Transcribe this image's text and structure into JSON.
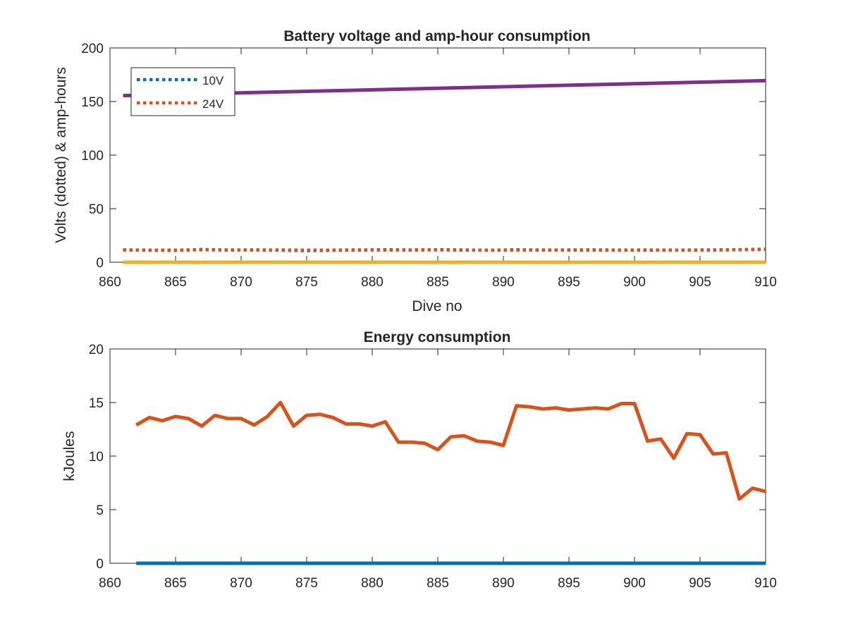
{
  "chart_data": [
    {
      "type": "line",
      "title": "Battery voltage and amp-hour consumption",
      "xlabel": "Dive no",
      "ylabel": "Volts (dotted) & amp-hours",
      "xlim": [
        860,
        910
      ],
      "ylim": [
        0,
        200
      ],
      "xticks": [
        860,
        865,
        870,
        875,
        880,
        885,
        890,
        895,
        900,
        905,
        910
      ],
      "yticks": [
        0,
        50,
        100,
        150,
        200
      ],
      "legend_position": "top-left",
      "grid": false,
      "series": [
        {
          "name": "10V",
          "style": "dotted",
          "color": "#0072BD",
          "x": [
            861,
            863,
            865,
            867,
            869,
            871,
            873,
            875,
            877,
            879,
            881,
            883,
            885,
            887,
            889,
            891,
            893,
            895,
            897,
            899,
            901,
            903,
            905,
            907,
            909,
            910
          ],
          "y": [
            11.5,
            11.2,
            11.0,
            12.0,
            11.3,
            11.6,
            11.2,
            10.8,
            11.1,
            11.3,
            11.8,
            11.4,
            11.8,
            11.5,
            11.2,
            11.7,
            11.3,
            11.5,
            11.6,
            11.4,
            11.2,
            11.3,
            11.5,
            11.6,
            12.0,
            12.2
          ]
        },
        {
          "name": "24V",
          "style": "dotted",
          "color": "#D95319",
          "x": [
            861,
            863,
            865,
            867,
            869,
            871,
            873,
            875,
            877,
            879,
            881,
            883,
            885,
            887,
            889,
            891,
            893,
            895,
            897,
            899,
            901,
            903,
            905,
            907,
            909,
            910
          ],
          "y": [
            11.5,
            11.4,
            11.3,
            11.6,
            11.5,
            11.4,
            11.5,
            11.3,
            11.4,
            11.6,
            11.4,
            11.5,
            11.5,
            11.3,
            11.4,
            11.4,
            11.5,
            11.3,
            11.4,
            11.4,
            11.5,
            11.4,
            11.4,
            11.5,
            11.8,
            11.9
          ]
        },
        {
          "style": "solid",
          "color": "#7E2F8E",
          "x": [
            861,
            910
          ],
          "y": [
            155.5,
            169.5
          ]
        },
        {
          "style": "solid",
          "color": "#EDB120",
          "x": [
            861,
            910
          ],
          "y": [
            0,
            0
          ]
        }
      ]
    },
    {
      "type": "line",
      "title": "Energy consumption",
      "xlabel": "",
      "ylabel": "kJoules",
      "xlim": [
        860,
        910
      ],
      "ylim": [
        0,
        20
      ],
      "xticks": [
        860,
        865,
        870,
        875,
        880,
        885,
        890,
        895,
        900,
        905,
        910
      ],
      "yticks": [
        0,
        5,
        10,
        15,
        20
      ],
      "grid": false,
      "series": [
        {
          "style": "solid",
          "color": "#D95319",
          "x": [
            862,
            863,
            864,
            865,
            866,
            867,
            868,
            869,
            870,
            871,
            872,
            873,
            874,
            875,
            876,
            877,
            878,
            879,
            880,
            881,
            882,
            883,
            884,
            885,
            886,
            887,
            888,
            889,
            890,
            891,
            892,
            893,
            894,
            895,
            896,
            897,
            898,
            899,
            900,
            901,
            902,
            903,
            904,
            905,
            906,
            907,
            908,
            909,
            910
          ],
          "y": [
            12.9,
            13.6,
            13.3,
            13.7,
            13.5,
            12.8,
            13.8,
            13.5,
            13.5,
            12.9,
            13.7,
            15.0,
            12.8,
            13.8,
            13.9,
            13.6,
            13.0,
            13.0,
            12.8,
            13.2,
            11.3,
            11.3,
            11.2,
            10.6,
            11.8,
            11.9,
            11.4,
            11.3,
            11.0,
            14.7,
            14.6,
            14.4,
            14.5,
            14.3,
            14.4,
            14.5,
            14.4,
            14.9,
            14.9,
            11.4,
            11.6,
            9.8,
            12.1,
            12.0,
            10.2,
            10.3,
            6.0,
            7.0,
            6.7
          ]
        },
        {
          "style": "solid",
          "color": "#0072BD",
          "x": [
            862,
            910
          ],
          "y": [
            0,
            0
          ]
        }
      ]
    }
  ]
}
